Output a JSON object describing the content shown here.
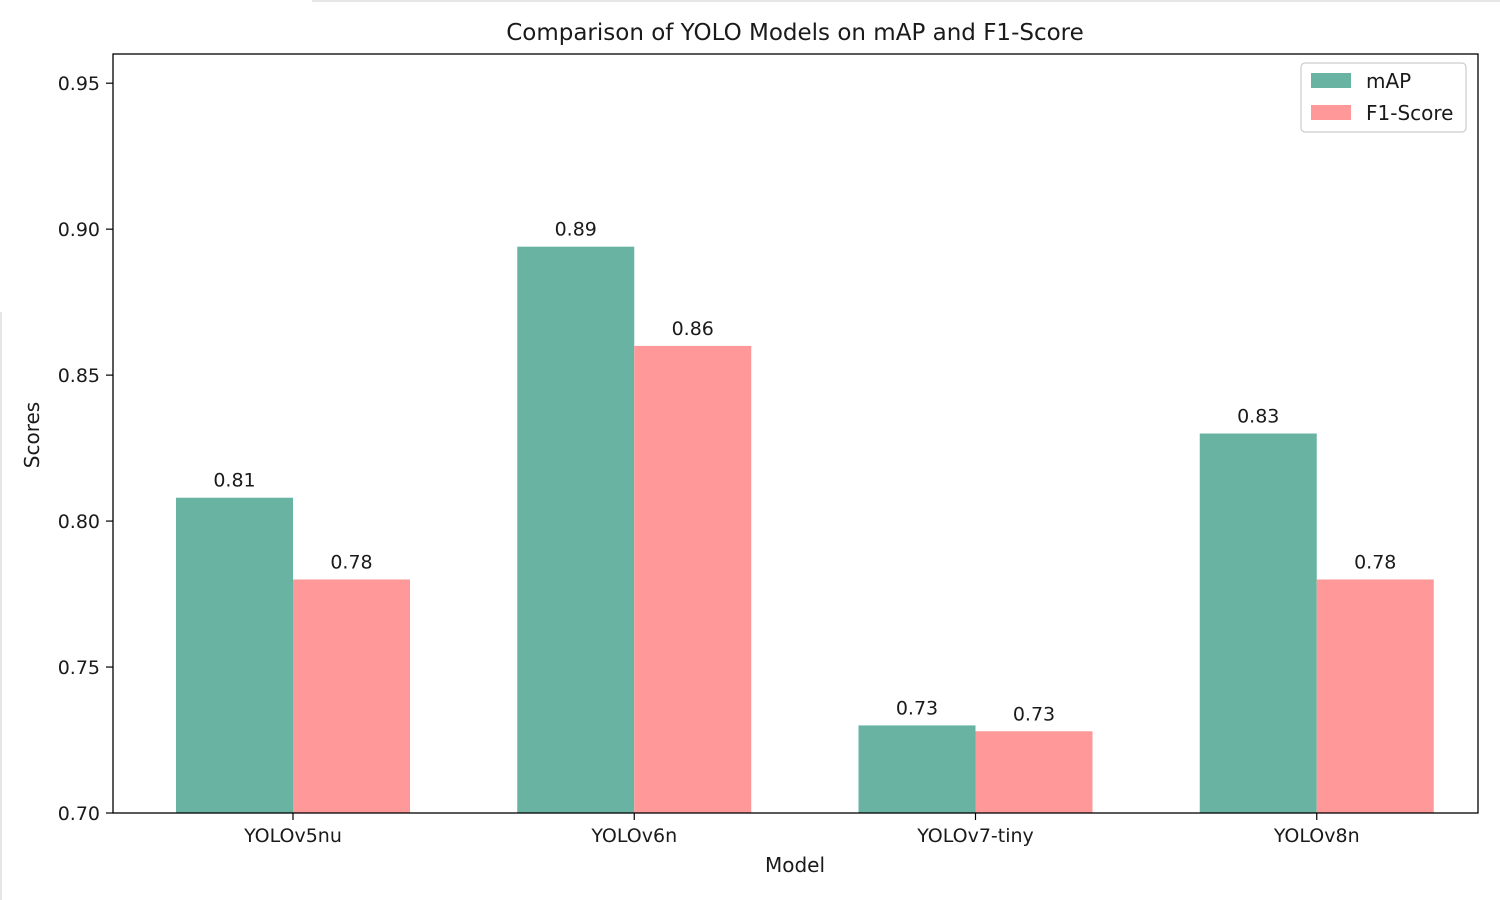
{
  "chart_data": {
    "type": "bar",
    "title": "Comparison of YOLO Models on mAP and F1-Score",
    "xlabel": "Model",
    "ylabel": "Scores",
    "categories": [
      "YOLOv5nu",
      "YOLOv6n",
      "YOLOv7-tiny",
      "YOLOv8n"
    ],
    "series": [
      {
        "name": "mAP",
        "color": "#69b3a2",
        "values": [
          0.808,
          0.894,
          0.73,
          0.83
        ],
        "labels": [
          "0.81",
          "0.89",
          "0.73",
          "0.83"
        ]
      },
      {
        "name": "F1-Score",
        "color": "#ff9999",
        "values": [
          0.78,
          0.86,
          0.728,
          0.78
        ],
        "labels": [
          "0.78",
          "0.86",
          "0.73",
          "0.78"
        ]
      }
    ],
    "ylim": [
      0.7,
      0.96
    ],
    "yticks": [
      "0.70",
      "0.75",
      "0.80",
      "0.85",
      "0.90",
      "0.95"
    ],
    "grid": false,
    "legend_position": "top-right"
  }
}
